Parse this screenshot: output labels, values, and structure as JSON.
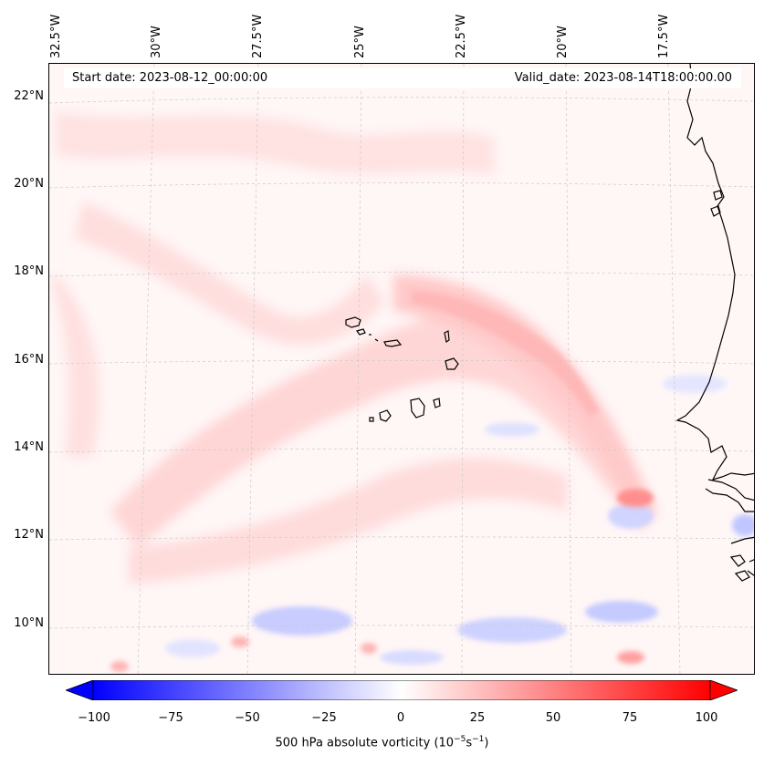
{
  "header": {
    "start_date": "Start date: 2023-08-12_00:00:00",
    "valid_date": "Valid_date: 2023-08-14T18:00:00.00"
  },
  "map": {
    "longitude_labels": [
      "32.5°W",
      "30°W",
      "27.5°W",
      "25°W",
      "22.5°W",
      "20°W",
      "17.5°W"
    ],
    "latitude_labels": [
      "22°N",
      "20°N",
      "18°N",
      "16°N",
      "14°N",
      "12°N",
      "10°N"
    ],
    "field": "500 hPa absolute vorticity",
    "features": [
      "cape-verde-islands",
      "west-africa-coastline"
    ]
  },
  "colorbar": {
    "ticks": [
      "−100",
      "−75",
      "−50",
      "−25",
      "0",
      "25",
      "50",
      "75",
      "100"
    ],
    "label_main": "500 hPa absolute vorticity (10",
    "label_exp1": "−5",
    "label_mid": "s",
    "label_exp2": "−1",
    "label_end": ")",
    "min": -100,
    "max": 100,
    "min_color": "#0000ff",
    "mid_color": "#ffffff",
    "max_color": "#ff0000"
  }
}
